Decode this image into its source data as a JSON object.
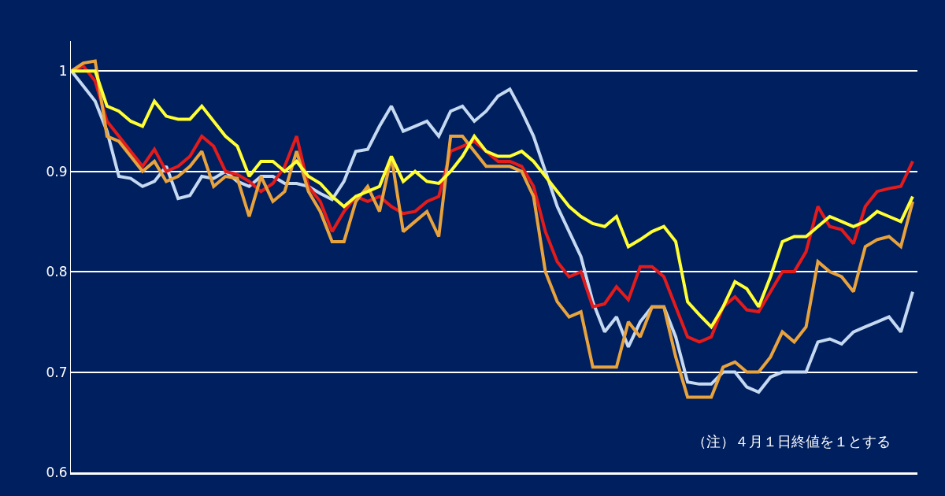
{
  "chart_data": {
    "type": "line",
    "categories": [
      null,
      null,
      null,
      null,
      null,
      null,
      null,
      null,
      null,
      null,
      null,
      null,
      null,
      null,
      null,
      null,
      null,
      null,
      null,
      null,
      null,
      null,
      null,
      null,
      null,
      null,
      null,
      null,
      null,
      null,
      null,
      null,
      null,
      null,
      null,
      null,
      null,
      null,
      null,
      null,
      null,
      null,
      null,
      null,
      null,
      null,
      null,
      null,
      null,
      null,
      null,
      null,
      null,
      null,
      null,
      null,
      null,
      null,
      null,
      null,
      null,
      null,
      null,
      null,
      null,
      null,
      null,
      null,
      null,
      null,
      null,
      null
    ],
    "series": [
      {
        "color": "#c5d9f1",
        "values": [
          1.0,
          0.985,
          0.97,
          0.94,
          0.895,
          0.893,
          0.885,
          0.89,
          0.905,
          0.873,
          0.876,
          0.895,
          0.893,
          0.9,
          0.89,
          0.885,
          0.895,
          0.895,
          0.888,
          0.888,
          0.885,
          0.878,
          0.872,
          0.89,
          0.92,
          0.922,
          0.945,
          0.965,
          0.94,
          0.945,
          0.95,
          0.935,
          0.96,
          0.965,
          0.95,
          0.96,
          0.975,
          0.982,
          0.96,
          0.935,
          0.9,
          0.865,
          0.84,
          0.815,
          0.77,
          0.74,
          0.755,
          0.725,
          0.75,
          0.765,
          0.765,
          0.735,
          0.69,
          0.688,
          0.688,
          0.7,
          0.7,
          0.685,
          0.68,
          0.695,
          0.7,
          0.7,
          0.7,
          0.73,
          0.733,
          0.728,
          0.74,
          0.745,
          0.75,
          0.755,
          0.74,
          0.78
        ]
      },
      {
        "color": "#e31b1b",
        "values": [
          1.0,
          1.005,
          0.99,
          0.95,
          0.935,
          0.92,
          0.905,
          0.922,
          0.9,
          0.905,
          0.915,
          0.935,
          0.925,
          0.9,
          0.897,
          0.89,
          0.88,
          0.888,
          0.905,
          0.935,
          0.885,
          0.87,
          0.84,
          0.86,
          0.875,
          0.87,
          0.875,
          0.865,
          0.858,
          0.86,
          0.87,
          0.875,
          0.92,
          0.925,
          0.93,
          0.92,
          0.91,
          0.91,
          0.905,
          0.885,
          0.84,
          0.81,
          0.795,
          0.8,
          0.765,
          0.768,
          0.785,
          0.772,
          0.805,
          0.805,
          0.795,
          0.765,
          0.735,
          0.73,
          0.735,
          0.765,
          0.775,
          0.762,
          0.76,
          0.78,
          0.8,
          0.8,
          0.82,
          0.865,
          0.845,
          0.842,
          0.828,
          0.865,
          0.88,
          0.883,
          0.885,
          0.91
        ]
      },
      {
        "color": "#e8a33d",
        "values": [
          1.0,
          1.008,
          1.01,
          0.935,
          0.93,
          0.915,
          0.9,
          0.91,
          0.89,
          0.895,
          0.905,
          0.92,
          0.885,
          0.895,
          0.893,
          0.855,
          0.895,
          0.87,
          0.88,
          0.92,
          0.88,
          0.86,
          0.83,
          0.83,
          0.87,
          0.885,
          0.86,
          0.915,
          0.84,
          0.85,
          0.86,
          0.835,
          0.935,
          0.935,
          0.92,
          0.905,
          0.905,
          0.905,
          0.9,
          0.875,
          0.8,
          0.77,
          0.755,
          0.76,
          0.705,
          0.705,
          0.705,
          0.75,
          0.735,
          0.765,
          0.765,
          0.715,
          0.675,
          0.675,
          0.675,
          0.705,
          0.71,
          0.7,
          0.7,
          0.715,
          0.74,
          0.73,
          0.745,
          0.81,
          0.8,
          0.795,
          0.78,
          0.825,
          0.832,
          0.835,
          0.825,
          0.87
        ]
      },
      {
        "color": "#ffff33",
        "values": [
          1.0,
          1.0,
          1.0,
          0.965,
          0.96,
          0.95,
          0.945,
          0.97,
          0.955,
          0.952,
          0.952,
          0.965,
          0.95,
          0.935,
          0.925,
          0.895,
          0.91,
          0.91,
          0.9,
          0.91,
          0.895,
          0.888,
          0.875,
          0.865,
          0.875,
          0.88,
          0.885,
          0.915,
          0.89,
          0.9,
          0.89,
          0.888,
          0.9,
          0.915,
          0.935,
          0.92,
          0.915,
          0.915,
          0.92,
          0.91,
          0.895,
          0.88,
          0.865,
          0.855,
          0.848,
          0.845,
          0.855,
          0.825,
          0.832,
          0.84,
          0.845,
          0.83,
          0.77,
          0.757,
          0.745,
          0.765,
          0.79,
          0.783,
          0.765,
          0.795,
          0.83,
          0.835,
          0.835,
          0.845,
          0.855,
          0.85,
          0.845,
          0.85,
          0.86,
          0.855,
          0.85,
          0.875
        ]
      }
    ],
    "ylim": [
      0.6,
      1.03
    ],
    "yticks": [
      0.6,
      0.7,
      0.8,
      0.9,
      1
    ],
    "grid": "y",
    "line_style": "solid",
    "marker": "none",
    "annotations": [
      "（注）４月１日終値を１とする"
    ]
  }
}
